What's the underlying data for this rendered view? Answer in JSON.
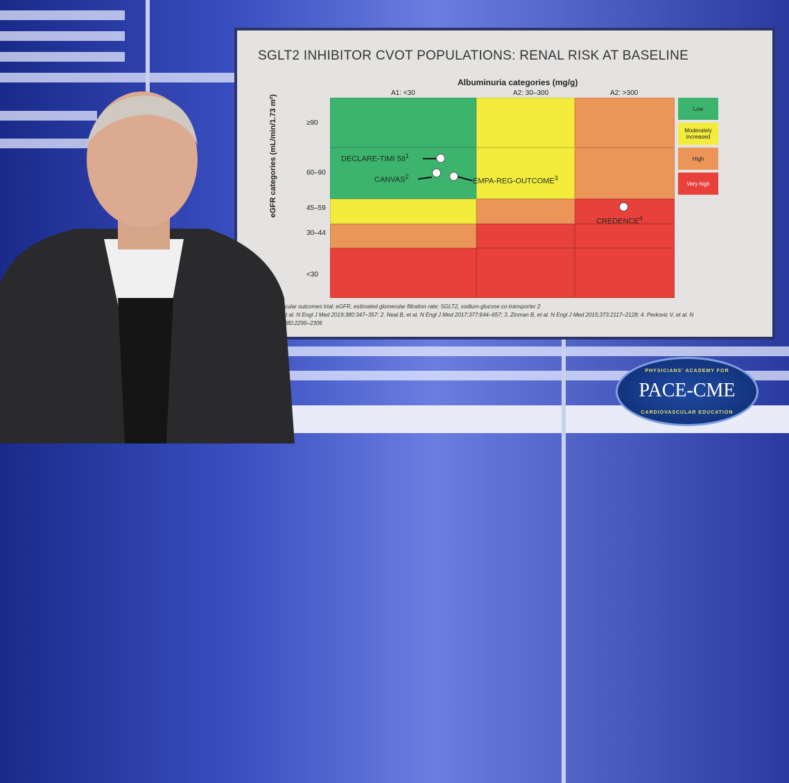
{
  "slide": {
    "title": "SGLT2 INHIBITOR CVOT POPULATIONS: RENAL RISK AT BASELINE",
    "footnote_lines": [
      "vascular outcomes trial; eGFR, estimated glomerular filtration rate; SGLT2, sodium-glucose co-transporter 2",
      "B, et al. N Engl J Med 2019;380:347–357; 2. Neal B, et al. N Engl J Med 2017;377:644–657; 3. Zinman B, et al. N Engl J Med 2015;373:2117–2128; 4. Perkovic V, et al. N",
      "19;380:2295–2306"
    ]
  },
  "chart_data": {
    "type": "heatmap",
    "title": "Albuminuria categories (mg/g)",
    "xlabel": "Albuminuria categories (mg/g)",
    "ylabel": "eGFR categories (mL/min/1.73 m²)",
    "columns": [
      "A1: <30",
      "A2: 30–300",
      "A2: >300"
    ],
    "rows": [
      "≥90",
      "60–90",
      "45–59",
      "30–44",
      "<30"
    ],
    "risk_grid": [
      [
        "Low",
        "Moderately increased",
        "High"
      ],
      [
        "Low",
        "Moderately increased",
        "High"
      ],
      [
        "Moderately increased",
        "High",
        "Very high"
      ],
      [
        "High",
        "Very high",
        "Very high"
      ],
      [
        "Very high",
        "Very high",
        "Very high"
      ]
    ],
    "legend": [
      {
        "label": "Low",
        "color": "#3cb46e"
      },
      {
        "label": "Moderately increased",
        "color": "#f3ec3c"
      },
      {
        "label": "High",
        "color": "#ec9558"
      },
      {
        "label": "Very high",
        "color": "#e8403a"
      }
    ],
    "legend_position": "right",
    "trials": [
      {
        "label": "DECLARE-TIMI 58",
        "ref": "1",
        "column": "A1: <30",
        "row": "60–90"
      },
      {
        "label": "CANVAS",
        "ref": "2",
        "column": "A1: <30",
        "row": "60–90"
      },
      {
        "label": "EMPA-REG-OUTCOME",
        "ref": "3",
        "column": "A1: <30",
        "row": "60–90"
      },
      {
        "label": "CREDENCE",
        "ref": "4",
        "column": "A2: >300",
        "row": "45–59"
      }
    ]
  },
  "logo": {
    "name": "PACE-CME",
    "top": "PHYSICIANS' ACADEMY FOR",
    "bottom": "CARDIOVASCULAR EDUCATION"
  }
}
